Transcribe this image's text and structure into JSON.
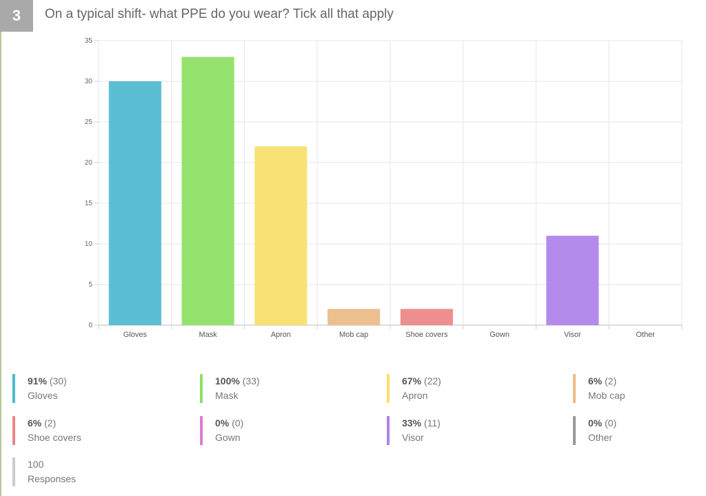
{
  "question": {
    "number": "3",
    "title": "On a typical shift- what PPE do you wear? Tick all that apply"
  },
  "chart_data": {
    "type": "bar",
    "categories": [
      "Gloves",
      "Mask",
      "Apron",
      "Mob cap",
      "Shoe covers",
      "Gown",
      "Visor",
      "Other"
    ],
    "values": [
      30,
      33,
      22,
      2,
      2,
      0,
      11,
      0
    ],
    "colors": [
      "#4fb9cf",
      "#8ee063",
      "#f9e06a",
      "#ebbb86",
      "#ec8686",
      "#e07ad0",
      "#ae82e8",
      "#999999"
    ],
    "ylim": [
      0,
      35
    ],
    "yticks": [
      0,
      5,
      10,
      15,
      20,
      25,
      30,
      35
    ],
    "grid": true,
    "title": "",
    "xlabel": "",
    "ylabel": ""
  },
  "legend": [
    {
      "percent": "91%",
      "count": "(30)",
      "label": "Gloves",
      "color": "#4fb9cf"
    },
    {
      "percent": "100%",
      "count": "(33)",
      "label": "Mask",
      "color": "#8ee063"
    },
    {
      "percent": "67%",
      "count": "(22)",
      "label": "Apron",
      "color": "#f9e06a"
    },
    {
      "percent": "6%",
      "count": "(2)",
      "label": "Mob cap",
      "color": "#ebbb86"
    },
    {
      "percent": "6%",
      "count": "(2)",
      "label": "Shoe covers",
      "color": "#ec8686"
    },
    {
      "percent": "0%",
      "count": "(0)",
      "label": "Gown",
      "color": "#e07ad0"
    },
    {
      "percent": "33%",
      "count": "(11)",
      "label": "Visor",
      "color": "#ae82e8"
    },
    {
      "percent": "0%",
      "count": "(0)",
      "label": "Other",
      "color": "#999999"
    }
  ],
  "responses": {
    "count": "100",
    "label": "Responses",
    "color": "#cccccc"
  }
}
